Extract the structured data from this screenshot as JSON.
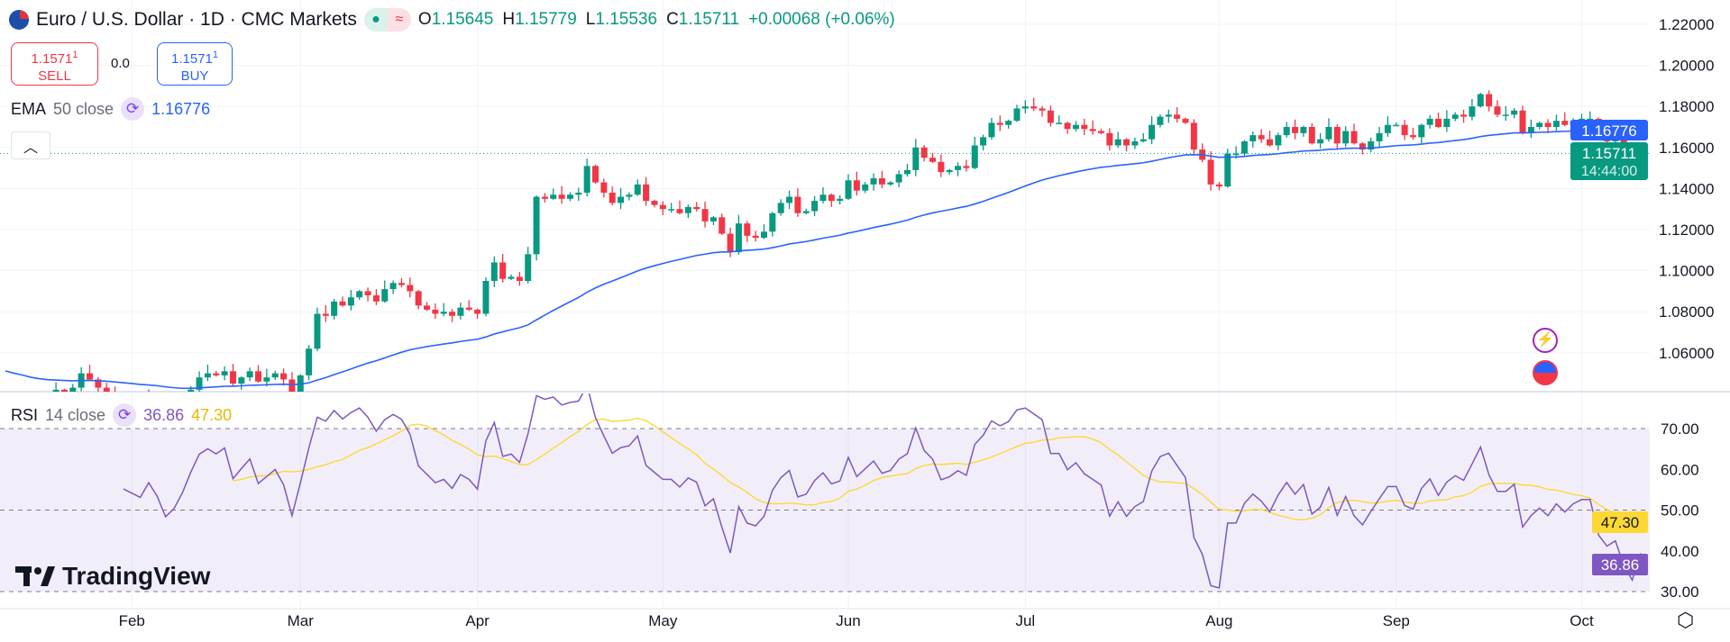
{
  "header": {
    "symbol_title": "Euro / U.S. Dollar · 1D · CMC Markets",
    "status_open": "●",
    "status_delayed": "≈",
    "ohlc": {
      "o_label": "O",
      "o": "1.15645",
      "h_label": "H",
      "h": "1.15779",
      "l_label": "L",
      "l": "1.15536",
      "c_label": "C",
      "c": "1.15711",
      "change": "+0.00068 (+0.06%)"
    }
  },
  "trade": {
    "sell_price": "1.1571",
    "sell_sup": "1",
    "sell_label": "SELL",
    "spread": "0.0",
    "buy_price": "1.1571",
    "buy_sup": "1",
    "buy_label": "BUY"
  },
  "indicators": {
    "ema": {
      "name": "EMA",
      "params": "50 close",
      "value": "1.16776"
    },
    "rsi": {
      "name": "RSI",
      "params": "14 close",
      "value": "36.86",
      "ma_value": "47.30"
    }
  },
  "collapse_icon": "chevron-up",
  "brand": "TradingView",
  "colors": {
    "up": "#089981",
    "down": "#f23645",
    "ema": "#2962ff",
    "rsi": "#7e57c2",
    "rsi_ma": "#fdd835",
    "rsi_band": "#7e57c21a"
  },
  "price_axis": {
    "ticks": [
      "1.22000",
      "1.20000",
      "1.18000",
      "1.16000",
      "1.14000",
      "1.12000",
      "1.10000",
      "1.08000",
      "1.06000"
    ],
    "ema_tag": "1.16776",
    "last_price_tag": "1.15711",
    "countdown": "14:44:00"
  },
  "rsi_axis": {
    "ticks": [
      "70.00",
      "60.00",
      "50.00",
      "40.00",
      "30.00"
    ],
    "ma_tag": "47.30",
    "rsi_tag": "36.86"
  },
  "chart_data": {
    "type": "candlestick",
    "ylim": [
      1.045,
      1.225
    ],
    "grid": true,
    "last_close": 1.15711,
    "months": [
      {
        "label": "",
        "closes": [
          1.03,
          1.024,
          1.027,
          1.022,
          1.03,
          1.035,
          1.042,
          1.041,
          1.043,
          1.05,
          1.047,
          1.043,
          1.04,
          1.038,
          1.036
        ]
      },
      {
        "label": "Feb",
        "closes": [
          1.035,
          1.034,
          1.038,
          1.035,
          1.03,
          1.032,
          1.036,
          1.042,
          1.048,
          1.05,
          1.049,
          1.051,
          1.045,
          1.048,
          1.051,
          1.046,
          1.048,
          1.05,
          1.047,
          1.04
        ]
      },
      {
        "label": "Mar",
        "closes": [
          1.049,
          1.062,
          1.079,
          1.078,
          1.085,
          1.083,
          1.087,
          1.09,
          1.088,
          1.085,
          1.091,
          1.094,
          1.093,
          1.09,
          1.083,
          1.081,
          1.079,
          1.08,
          1.078,
          1.082,
          1.081
        ]
      },
      {
        "label": "Apr",
        "closes": [
          1.079,
          1.095,
          1.104,
          1.096,
          1.097,
          1.095,
          1.108,
          1.136,
          1.135,
          1.137,
          1.135,
          1.137,
          1.138,
          1.151,
          1.143,
          1.138,
          1.133,
          1.136,
          1.137,
          1.142,
          1.134,
          1.132
        ]
      },
      {
        "label": "May",
        "closes": [
          1.13,
          1.13,
          1.128,
          1.131,
          1.13,
          1.124,
          1.126,
          1.118,
          1.109,
          1.123,
          1.117,
          1.116,
          1.119,
          1.128,
          1.133,
          1.136,
          1.128,
          1.129,
          1.134,
          1.137,
          1.134,
          1.135
        ]
      },
      {
        "label": "Jun",
        "closes": [
          1.144,
          1.139,
          1.142,
          1.145,
          1.142,
          1.143,
          1.147,
          1.149,
          1.16,
          1.155,
          1.153,
          1.148,
          1.149,
          1.151,
          1.15,
          1.161,
          1.165,
          1.172,
          1.171,
          1.173,
          1.179
        ]
      },
      {
        "label": "Jul",
        "closes": [
          1.18,
          1.179,
          1.178,
          1.172,
          1.172,
          1.169,
          1.171,
          1.169,
          1.168,
          1.167,
          1.161,
          1.164,
          1.161,
          1.163,
          1.164,
          1.171,
          1.175,
          1.176,
          1.174,
          1.172,
          1.159,
          1.154,
          1.142
        ]
      },
      {
        "label": "Aug",
        "closes": [
          1.141,
          1.157,
          1.157,
          1.163,
          1.166,
          1.164,
          1.161,
          1.166,
          1.17,
          1.167,
          1.17,
          1.162,
          1.164,
          1.17,
          1.162,
          1.168,
          1.162,
          1.159,
          1.163,
          1.167,
          1.171
        ]
      },
      {
        "label": "Sep",
        "closes": [
          1.171,
          1.166,
          1.165,
          1.171,
          1.174,
          1.17,
          1.174,
          1.176,
          1.175,
          1.18,
          1.186,
          1.18,
          1.176,
          1.176,
          1.178,
          1.167,
          1.17,
          1.172,
          1.17,
          1.173,
          1.171,
          1.173
        ]
      },
      {
        "label": "Oct",
        "closes": [
          1.174,
          1.174,
          1.166,
          1.163,
          1.164,
          1.157,
          1.152,
          1.15711
        ]
      }
    ],
    "ema_period": 50,
    "rsi_period": 14,
    "rsi_levels": [
      70,
      50,
      30
    ],
    "rsi_ylim": [
      25,
      80
    ]
  }
}
